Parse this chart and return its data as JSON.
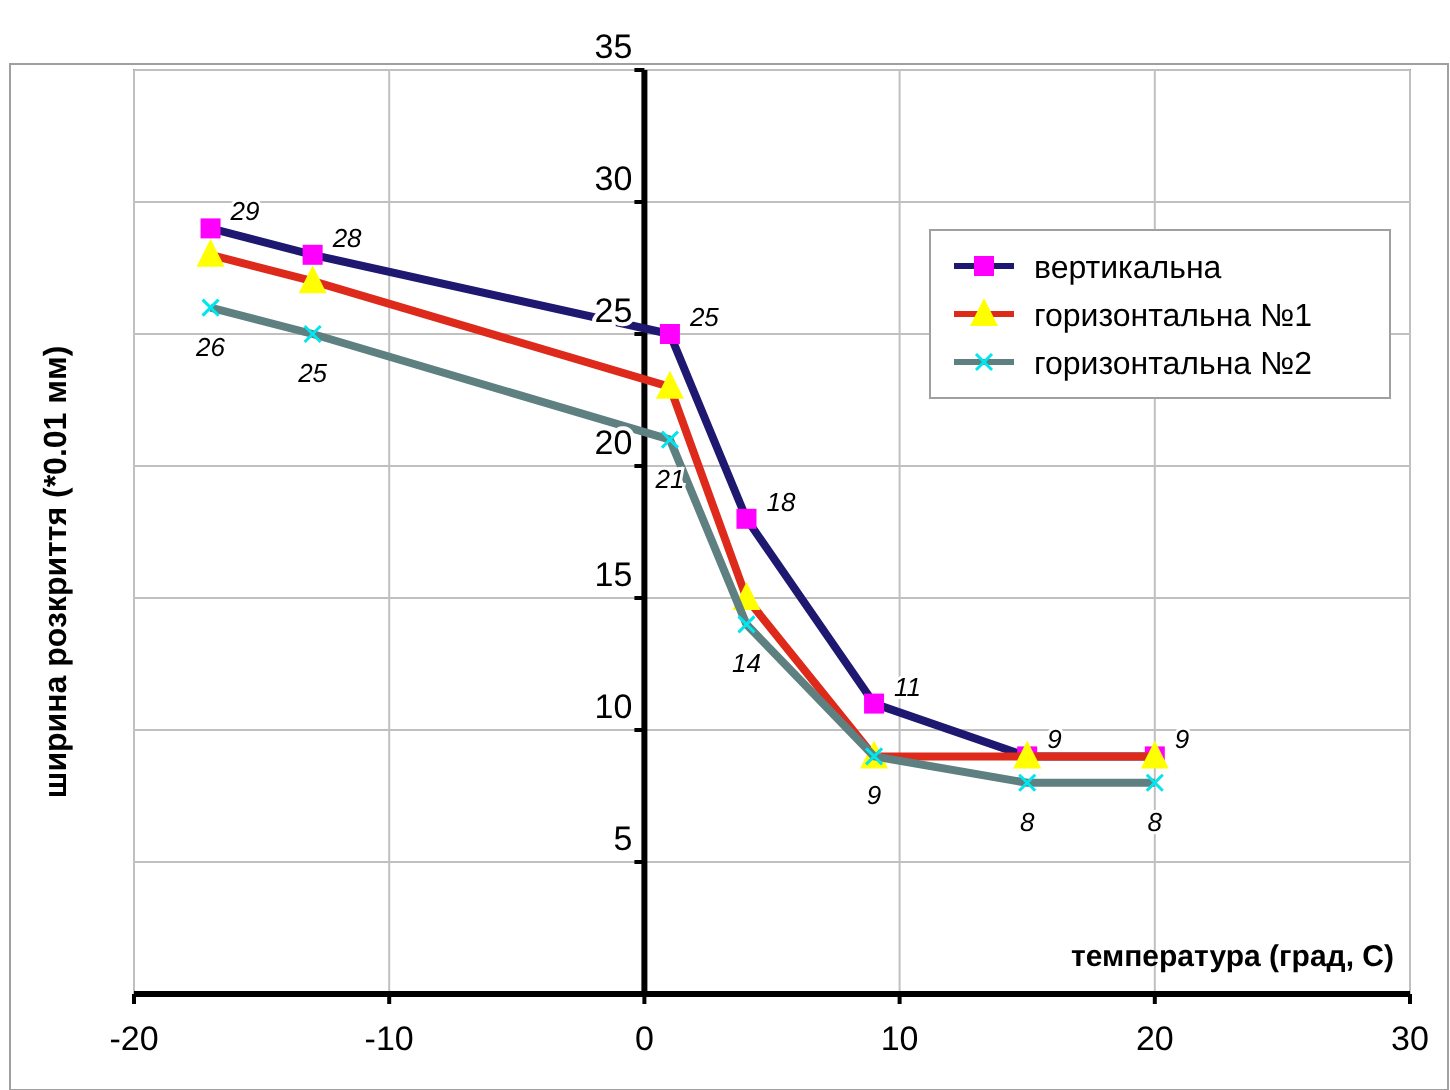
{
  "chart_data": {
    "type": "line",
    "xlabel": "температура (град, С)",
    "ylabel": "ширина розкриття  (*0.01 мм)",
    "x": [
      -17,
      -13,
      1,
      4,
      9,
      15,
      20
    ],
    "xlim": [
      -20,
      30
    ],
    "xticks": [
      -20,
      -10,
      0,
      10,
      20,
      30
    ],
    "ylim": [
      0,
      35
    ],
    "yticks": [
      5,
      10,
      15,
      20,
      25,
      30,
      35
    ],
    "grid": true,
    "legend": "top right",
    "line_style": "solid",
    "series": [
      {
        "name": "вертикальна",
        "color": "#1f1870",
        "marker": "square",
        "colors": [
          "#ff00ff",
          "#ff00ff",
          "#ff00ff",
          "#ff00ff",
          "#ff00ff",
          "#ff00ff",
          "#ff00ff"
        ],
        "values": [
          29,
          28,
          25,
          18,
          11,
          9,
          9
        ],
        "value_labels": [
          "29",
          "28",
          "25",
          "18",
          "11",
          "9",
          "9"
        ]
      },
      {
        "name": "горизонтальна №1",
        "color": "#dd2a1b",
        "marker": "triangle",
        "colors": [
          "#ffff00",
          "#ffff00",
          "#ffff00",
          "#ffff00",
          "#ffff00",
          "#ffff00",
          "#ffff00"
        ],
        "values": [
          28,
          27,
          23,
          15,
          9,
          9,
          9
        ]
      },
      {
        "name": "горизонтальна №2",
        "color": "#5f8080",
        "marker": "cross",
        "colors": [
          "#00e5ee",
          "#00e5ee",
          "#00e5ee",
          "#00e5ee",
          "#00e5ee",
          "#00e5ee",
          "#00e5ee"
        ],
        "values": [
          26,
          25,
          21,
          14,
          9,
          8,
          8
        ],
        "value_labels": [
          "26",
          "25",
          "21",
          "14",
          "9",
          "8",
          "8"
        ]
      }
    ]
  }
}
